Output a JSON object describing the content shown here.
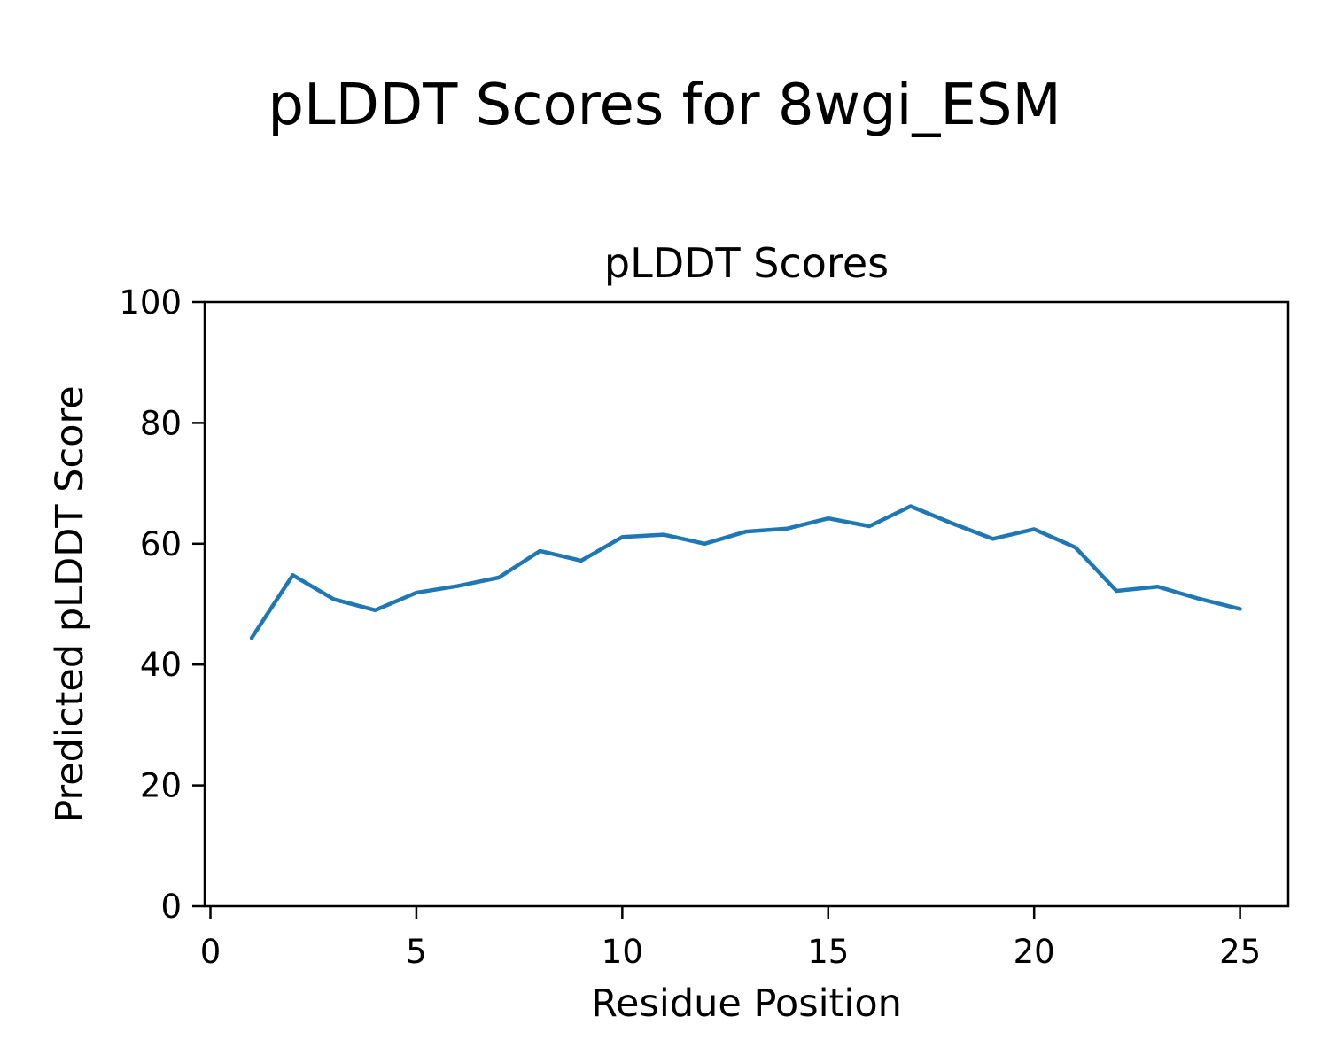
{
  "figure": {
    "suptitle": "pLDDT Scores for 8wgi_ESM",
    "background": "#ffffff",
    "text_color": "#000000"
  },
  "chart_data": {
    "type": "line",
    "title": "pLDDT Scores",
    "xlabel": "Residue Position",
    "ylabel": "Predicted pLDDT Score",
    "x": [
      1,
      2,
      3,
      4,
      5,
      6,
      7,
      8,
      9,
      10,
      11,
      12,
      13,
      14,
      15,
      16,
      17,
      18,
      19,
      20,
      21,
      22,
      23,
      24,
      25
    ],
    "series": [
      {
        "name": "pLDDT",
        "color": "#1f77b4",
        "values": [
          44.4,
          54.8,
          50.8,
          49.0,
          51.9,
          53.0,
          54.4,
          58.8,
          57.2,
          61.1,
          61.5,
          60.0,
          62.0,
          62.5,
          64.2,
          62.9,
          66.2,
          63.4,
          60.8,
          62.4,
          59.4,
          52.2,
          52.9,
          50.9,
          49.2
        ]
      }
    ],
    "xticks": [
      0,
      5,
      10,
      15,
      20,
      25
    ],
    "yticks": [
      0,
      20,
      40,
      60,
      80,
      100
    ],
    "xlim": [
      -0.14,
      26.17
    ],
    "ylim": [
      0,
      100
    ],
    "grid": false,
    "legend": false,
    "spine_color": "#000000"
  }
}
